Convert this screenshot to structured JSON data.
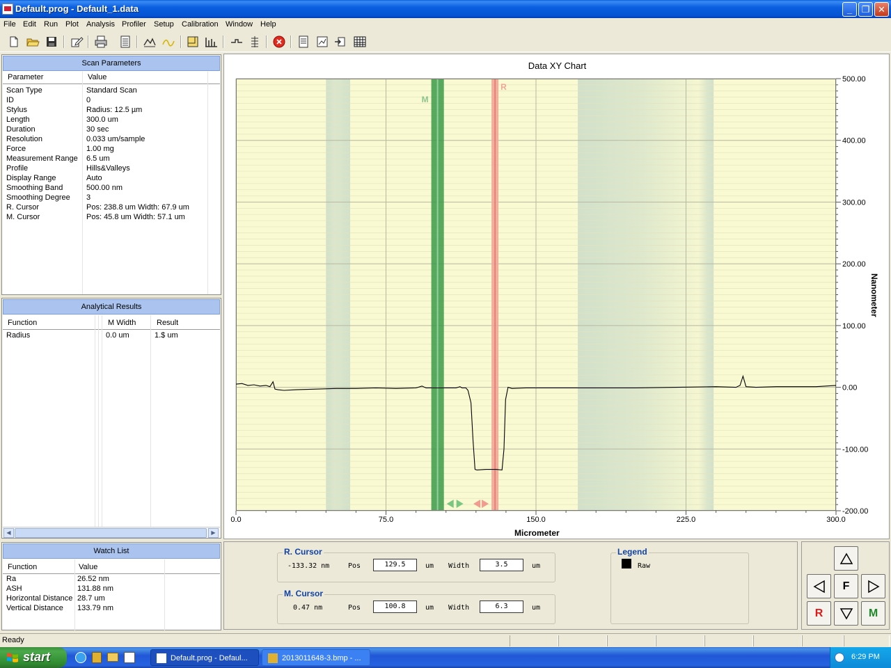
{
  "window": {
    "title": "Default.prog - Default_1.data"
  },
  "menu": [
    "File",
    "Edit",
    "Run",
    "Plot",
    "Analysis",
    "Profiler",
    "Setup",
    "Calibration",
    "Window",
    "Help"
  ],
  "toolbar_icons": [
    "new-file-icon",
    "open-folder-icon",
    "save-icon",
    "edit-icon",
    "print-icon",
    "calculator-icon",
    "leveling-icon",
    "filter-icon",
    "histogram-icon",
    "bar-chart-icon",
    "step-icon",
    "stack-icon",
    "stop-icon",
    "report-icon",
    "graph-icon",
    "export-icon",
    "table-icon"
  ],
  "scan_parameters": {
    "title": "Scan Parameters",
    "col_parameter": "Parameter",
    "col_value": "Value",
    "rows": [
      {
        "name": "Scan Type",
        "value": "Standard Scan"
      },
      {
        "name": "ID",
        "value": "0"
      },
      {
        "name": "Stylus",
        "value": "Radius: 12.5 µm"
      },
      {
        "name": "Length",
        "value": "300.0 um"
      },
      {
        "name": "Duration",
        "value": "30 sec"
      },
      {
        "name": "Resolution",
        "value": "0.033 um/sample"
      },
      {
        "name": "Force",
        "value": "1.00 mg"
      },
      {
        "name": "Measurement Range",
        "value": "6.5 um"
      },
      {
        "name": "Profile",
        "value": "Hills&Valleys"
      },
      {
        "name": "Display Range",
        "value": "Auto"
      },
      {
        "name": "Smoothing Band",
        "value": "500.00 nm"
      },
      {
        "name": "Smoothing Degree",
        "value": "3"
      },
      {
        "name": "R. Cursor",
        "value": "Pos: 238.8 um Width: 67.9 um"
      },
      {
        "name": "M. Cursor",
        "value": "Pos: 45.8 um Width: 57.1 um"
      }
    ]
  },
  "analytical_results": {
    "title": "Analytical Results",
    "col_function": "Function",
    "col_mwidth": "M Width",
    "col_result": "Result",
    "rows": [
      {
        "function": "Radius",
        "mwidth": "0.0 um",
        "result": "1.$ um"
      }
    ]
  },
  "watch_list": {
    "title": "Watch List",
    "col_function": "Function",
    "col_value": "Value",
    "rows": [
      {
        "function": "Ra",
        "value": "26.52 nm"
      },
      {
        "function": "ASH",
        "value": "131.88 nm"
      },
      {
        "function": "Horizontal Distance",
        "value": "28.7 um"
      },
      {
        "function": "Vertical Distance",
        "value": "133.79 nm"
      }
    ]
  },
  "chart_data": {
    "type": "line",
    "title": "Data XY Chart",
    "xlabel": "Micrometer",
    "ylabel": "Nanometer",
    "xlim": [
      0,
      300
    ],
    "ylim": [
      -200,
      500
    ],
    "x_ticks": [
      "0.0",
      "75.0",
      "150.0",
      "225.0",
      "300.0"
    ],
    "y_ticks": [
      "500.00",
      "400.00",
      "300.00",
      "200.00",
      "100.00",
      "0.00",
      "-100.00",
      "-200.00"
    ],
    "grid": true,
    "series": [
      {
        "name": "Raw",
        "color": "#000000",
        "x": [
          0,
          3,
          6,
          9,
          12,
          15,
          17,
          18.5,
          19.5,
          21,
          24,
          30,
          40,
          50,
          60,
          70,
          80,
          90,
          93,
          95,
          100,
          105,
          110,
          112,
          113,
          115,
          116,
          117.5,
          118.5,
          119.5,
          120.5,
          125,
          130,
          133,
          134,
          134.8,
          136,
          138,
          145,
          160,
          180,
          200,
          220,
          240,
          250,
          252,
          253.5,
          255,
          260,
          270,
          280,
          290,
          300
        ],
        "y": [
          5,
          6,
          3,
          4,
          2,
          3,
          1,
          9,
          -3,
          -4,
          -5,
          -4,
          -3,
          -2,
          -2,
          -1,
          -2,
          -1,
          2,
          -1,
          -1,
          -1,
          -1,
          1,
          -1,
          -1,
          -5,
          -25,
          -85,
          -133,
          -134,
          -133,
          -133,
          -134,
          -100,
          -20,
          0,
          -2,
          -1,
          -1,
          -1,
          -1,
          0,
          1,
          0,
          3,
          18,
          1,
          0,
          1,
          1,
          1,
          3
        ]
      }
    ],
    "shaded_bands": [
      {
        "x": [
          45,
          57.1
        ],
        "color": "#c5d8c8"
      },
      {
        "x": [
          170.9,
          238.8
        ],
        "color": "#c5d8c8"
      }
    ],
    "m_cursor": {
      "pos": 100.8,
      "width": 6.3,
      "color": "#3b9a4a",
      "label": "M"
    },
    "r_cursor": {
      "pos": 129.5,
      "width": 3.5,
      "color": "#f0a69a",
      "label": "R"
    },
    "background": "#fafad2"
  },
  "r_cursor_panel": {
    "title": "R. Cursor",
    "readout": "-133.32 nm",
    "pos_label": "Pos",
    "pos": "129.5",
    "pos_unit": "um",
    "width_label": "Width",
    "width": "3.5",
    "width_unit": "um"
  },
  "m_cursor_panel": {
    "title": "M. Cursor",
    "readout": "0.47 nm",
    "pos_label": "Pos",
    "pos": "100.8",
    "pos_unit": "um",
    "width_label": "Width",
    "width": "6.3",
    "width_unit": "um"
  },
  "legend": {
    "title": "Legend",
    "entry": "Raw"
  },
  "nav": {
    "fit_label": "F",
    "r_label": "R",
    "m_label": "M"
  },
  "status": {
    "message": "Ready"
  },
  "taskbar": {
    "start_label": "start",
    "tasks": [
      "Default.prog - Defaul...",
      "2013011648-3.bmp - ..."
    ],
    "clock": "6:29 PM"
  }
}
